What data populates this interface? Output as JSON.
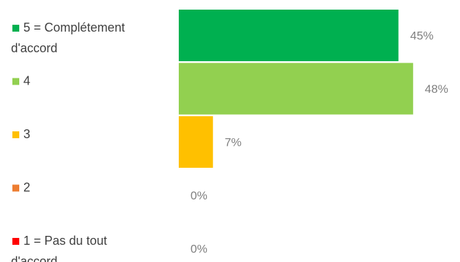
{
  "chart_data": {
    "type": "bar",
    "orientation": "horizontal",
    "xlim": [
      0,
      100
    ],
    "grid": false,
    "legend_position": "left",
    "categories": [
      {
        "label_lines": [
          "5 = Complétement",
          "d'accord"
        ],
        "value": 45,
        "value_label": "45%",
        "color": "#00B050"
      },
      {
        "label_lines": [
          "4"
        ],
        "value": 48,
        "value_label": "48%",
        "color": "#92D050"
      },
      {
        "label_lines": [
          "3"
        ],
        "value": 7,
        "value_label": "7%",
        "color": "#FFC000"
      },
      {
        "label_lines": [
          "2"
        ],
        "value": 0,
        "value_label": "0%",
        "color": "#ED7D31"
      },
      {
        "label_lines": [
          "1 = Pas du tout",
          "d'accord"
        ],
        "value": 0,
        "value_label": "0%",
        "color": "#FF0000"
      }
    ]
  }
}
